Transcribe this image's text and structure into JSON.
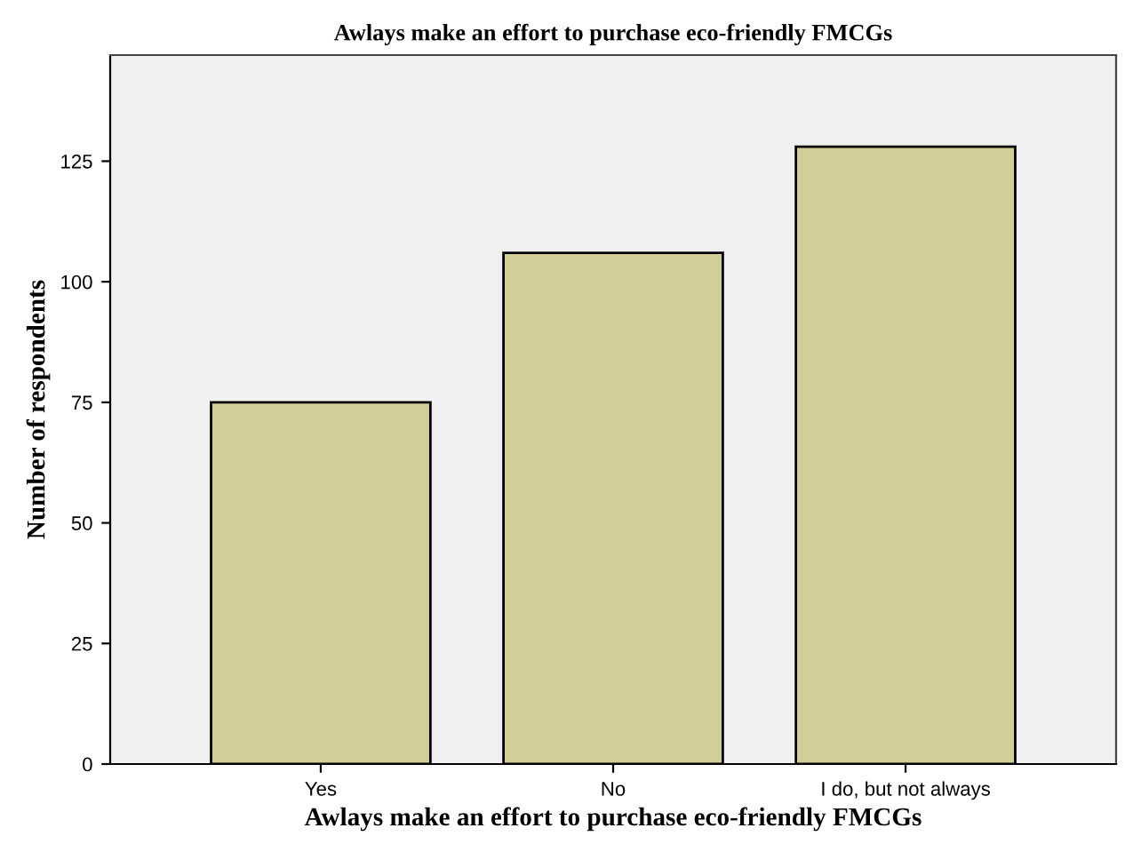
{
  "chart_data": {
    "type": "bar",
    "title": "Awlays make an effort to purchase eco-friendly FMCGs",
    "xlabel": "Awlays make an effort to purchase eco-friendly FMCGs",
    "ylabel": "Number of respondents",
    "categories": [
      "Yes",
      "No",
      "I do, but not always"
    ],
    "values": [
      75,
      106,
      128
    ],
    "color": "#d3ce97",
    "ylim": [
      0,
      147
    ],
    "yticks": [
      0,
      25,
      50,
      75,
      100,
      125
    ],
    "grid": false
  }
}
